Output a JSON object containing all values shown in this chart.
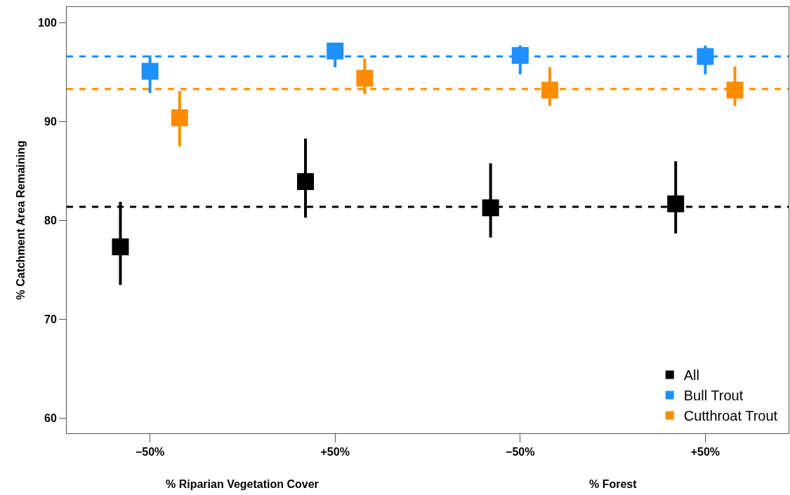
{
  "chart_data": {
    "type": "scatter",
    "ylabel": "% Catchment Area Remaining",
    "categories": [
      "−50%",
      "+50%",
      "−50%",
      "+50%"
    ],
    "ylim": [
      58.5,
      101.6
    ],
    "yticks": [
      60,
      70,
      80,
      90,
      100
    ],
    "series": [
      {
        "name": "All",
        "color": "#000000",
        "values": [
          77.35,
          83.95,
          81.3,
          81.7
        ],
        "errors": [
          [
            73.5,
            81.9
          ],
          [
            80.3,
            88.3
          ],
          [
            78.3,
            85.8
          ],
          [
            78.7,
            86.0
          ]
        ]
      },
      {
        "name": "Bull Trout",
        "color": "#1e90ff",
        "values": [
          95.1,
          97.15,
          96.7,
          96.6
        ],
        "errors": [
          [
            92.9,
            96.7
          ],
          [
            95.5,
            97.15
          ],
          [
            94.8,
            97.7
          ],
          [
            94.8,
            97.7
          ]
        ]
      },
      {
        "name": "Cutthroat Trout",
        "color": "#ff8c00",
        "values": [
          90.4,
          94.4,
          93.2,
          93.2
        ],
        "errors": [
          [
            87.5,
            93.1
          ],
          [
            92.8,
            96.4
          ],
          [
            91.6,
            95.5
          ],
          [
            91.6,
            95.6
          ]
        ]
      }
    ],
    "ref_lines": [
      {
        "axis": "y",
        "value": 81.4,
        "color": "#000000",
        "line_style": "dashed"
      },
      {
        "axis": "y",
        "value": 96.6,
        "color": "#1e90ff",
        "line_style": "dashed"
      },
      {
        "axis": "y",
        "value": 93.3,
        "color": "#ff8c00",
        "line_style": "dashed"
      }
    ],
    "annotations": [
      "% Riparian Vegetation Cover",
      "% Forest"
    ],
    "marker": "square",
    "legend": "bottom right",
    "grid": false
  }
}
